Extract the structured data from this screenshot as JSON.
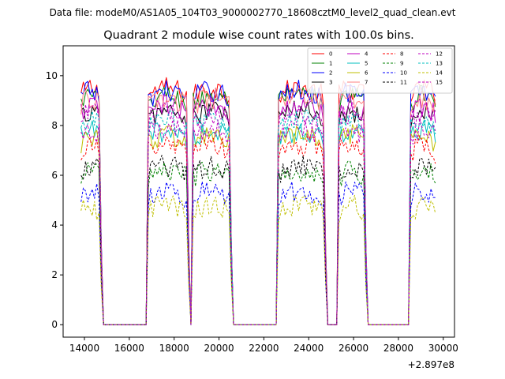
{
  "suptitle": "Data file: modeM0/AS1A05_104T03_9000002770_18608cztM0_level2_quad_clean.evt",
  "chart_data": {
    "type": "line",
    "title": "Quadrant 2 module wise count rates with 100.0s bins.",
    "xlabel": "",
    "ylabel": "",
    "x_offset_label": "+2.897e8",
    "xlim": [
      13050,
      30500
    ],
    "ylim": [
      -0.5,
      11.2
    ],
    "xticks": [
      14000,
      16000,
      18000,
      20000,
      22000,
      24000,
      26000,
      28000,
      30000
    ],
    "yticks": [
      0,
      2,
      4,
      6,
      8,
      10
    ],
    "bin_width": 100,
    "segments": [
      {
        "start": 13850,
        "end": 14700,
        "fall_end": 14800
      },
      {
        "start": 16800,
        "end": 18550,
        "fall_end": 18650
      },
      {
        "start": 18850,
        "end": 20500,
        "fall_end": 20600
      },
      {
        "start": 22650,
        "end": 24650,
        "fall_end": 24750
      },
      {
        "start": 25300,
        "end": 26450,
        "fall_end": 26550
      },
      {
        "start": 28550,
        "end": 29650,
        "fall_end": 29650
      }
    ],
    "gap_value": 0,
    "legend_position": "upper-right",
    "series": [
      {
        "name": "0",
        "color": "#ff0000",
        "style": "solid",
        "level": 9.3
      },
      {
        "name": "1",
        "color": "#008000",
        "style": "solid",
        "level": 9.0
      },
      {
        "name": "2",
        "color": "#0000ff",
        "style": "solid",
        "level": 9.2
      },
      {
        "name": "3",
        "color": "#000000",
        "style": "solid",
        "level": 8.4
      },
      {
        "name": "4",
        "color": "#bf00bf",
        "style": "solid",
        "level": 8.6
      },
      {
        "name": "5",
        "color": "#00bfbf",
        "style": "solid",
        "level": 7.6
      },
      {
        "name": "6",
        "color": "#bfbf00",
        "style": "solid",
        "level": 7.4
      },
      {
        "name": "7",
        "color": "#ff8080",
        "style": "solid",
        "level": 8.9
      },
      {
        "name": "8",
        "color": "#ff0000",
        "style": "dashed",
        "level": 7.0
      },
      {
        "name": "9",
        "color": "#008000",
        "style": "dashed",
        "level": 6.0
      },
      {
        "name": "10",
        "color": "#0000ff",
        "style": "dashed",
        "level": 5.2
      },
      {
        "name": "11",
        "color": "#000000",
        "style": "dashed",
        "level": 6.2
      },
      {
        "name": "12",
        "color": "#bf00bf",
        "style": "dashed",
        "level": 8.3
      },
      {
        "name": "13",
        "color": "#00bfbf",
        "style": "dashed",
        "level": 8.0
      },
      {
        "name": "14",
        "color": "#bfbf00",
        "style": "dashed",
        "level": 4.6
      },
      {
        "name": "15",
        "color": "#bf00bf",
        "style": "dashed",
        "level": 7.7
      }
    ]
  }
}
